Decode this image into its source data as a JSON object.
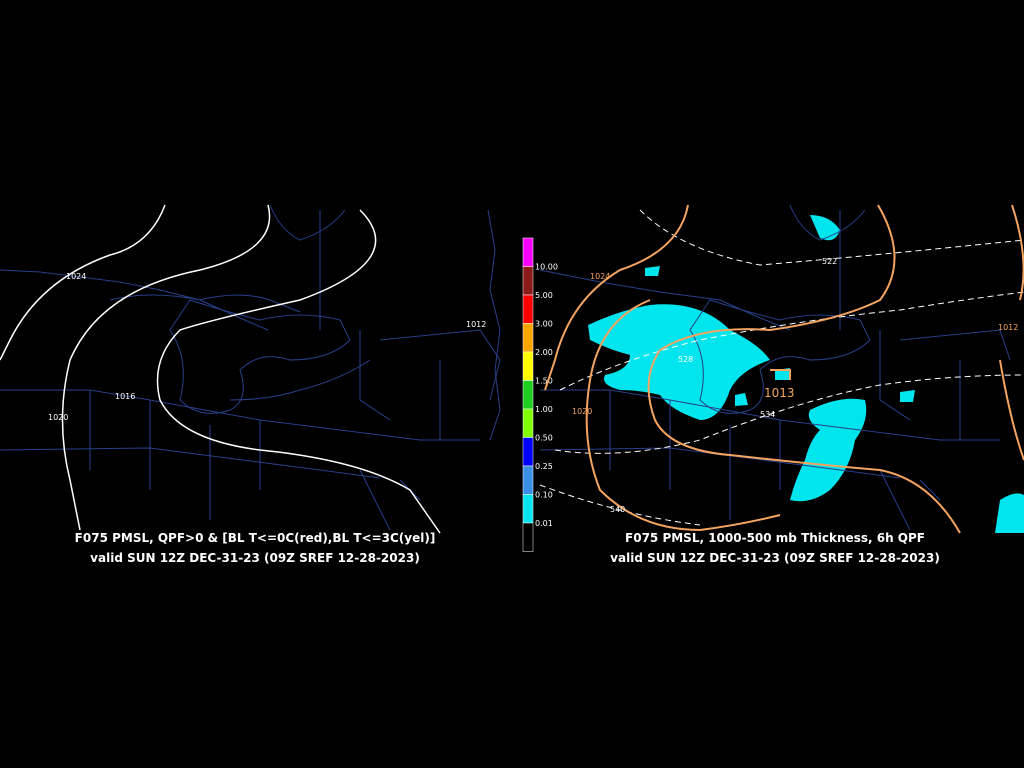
{
  "left_panel": {
    "title": "F075 PMSL, QPF>0 & [BL T<=0C(red),BL T<=3C(yel)]",
    "valid": "valid SUN 12Z DEC-31-23 (09Z SREF 12-28-2023)",
    "isobar_labels": [
      "1024",
      "1020",
      "1016",
      "1012"
    ]
  },
  "right_panel": {
    "title": "F075 PMSL, 1000-500 mb Thickness, 6h QPF",
    "valid": "valid SUN 12Z DEC-31-23 (09Z SREF 12-28-2023)",
    "isobar_labels": [
      "1024",
      "1020",
      "1013",
      "1012"
    ],
    "thickness_labels": [
      "522",
      "528",
      "534",
      "540"
    ]
  },
  "colorbar": {
    "levels": [
      {
        "label": "",
        "color": "#ff00ff"
      },
      {
        "label": "10.00",
        "color": "#8b1a1a"
      },
      {
        "label": "5.00",
        "color": "#ff0000"
      },
      {
        "label": "3.00",
        "color": "#ffa500"
      },
      {
        "label": "2.00",
        "color": "#ffff00"
      },
      {
        "label": "1.50",
        "color": "#1fcf1f"
      },
      {
        "label": "1.00",
        "color": "#7fff00"
      },
      {
        "label": "0.50",
        "color": "#0000ff"
      },
      {
        "label": "0.25",
        "color": "#3a8ee6"
      },
      {
        "label": "0.10",
        "color": "#00e5ee"
      },
      {
        "label": "0.01",
        "color": "#000000"
      }
    ]
  },
  "colors": {
    "isobar_left": "#ffffff",
    "isobar_right": "#f4a460",
    "borders": "#27408b",
    "qpf": "#00e5ee",
    "thickness": "#ffffff"
  }
}
